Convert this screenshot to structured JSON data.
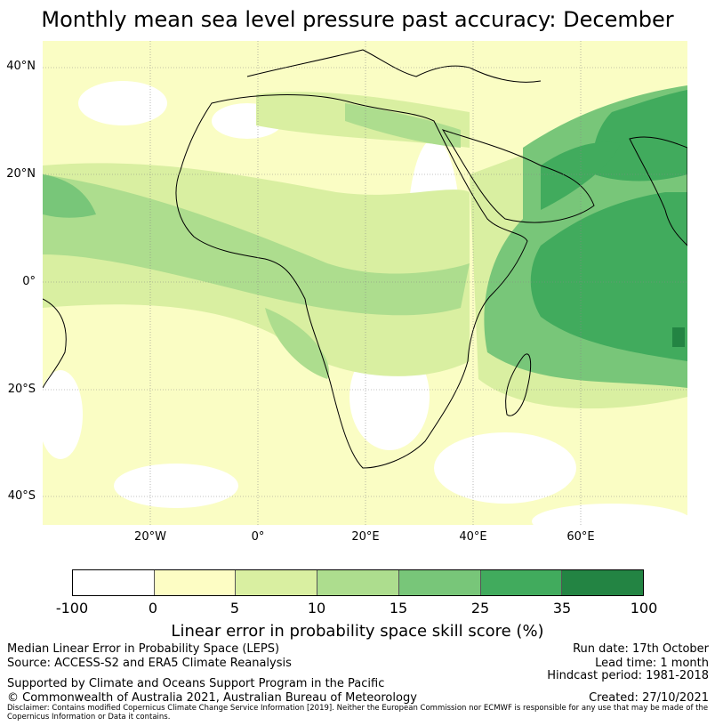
{
  "title": "Monthly mean sea level pressure past accuracy: December",
  "axes": {
    "lat_labels": [
      "40°N",
      "20°N",
      "0°",
      "20°S",
      "40°S"
    ],
    "lon_labels": [
      "20°W",
      "0°",
      "20°E",
      "40°E",
      "60°E"
    ]
  },
  "colorbar": {
    "ticks": [
      "-100",
      "0",
      "5",
      "10",
      "15",
      "25",
      "35",
      "100"
    ],
    "colors": [
      "#ffffff",
      "#fdfdc4",
      "#d9efa1",
      "#addd8e",
      "#78c679",
      "#41ab5d",
      "#238443"
    ],
    "label": "Linear error in probability space skill score (%)"
  },
  "footer": {
    "line1": "Median Linear Error in Probability Space (LEPS)",
    "line2": "Source: ACCESS-S2 and ERA5 Climate Reanalysis",
    "line3": "Supported by Climate and Oceans Support Program in the Pacific",
    "line4": "© Commonwealth of Australia 2021, Australian Bureau of Meteorology",
    "run_date": "Run date: 17th October",
    "lead_time": "Lead time: 1 month",
    "hindcast": "Hindcast period: 1981-2018",
    "created": "Created: 27/10/2021",
    "disclaimer": "Disclaimer: Contains modified Copernicus Climate Change Service Information [2019]. Neither the European Commission nor ECMWF is responsible for any use that may be made of the Copernicus Information or Data it contains."
  }
}
